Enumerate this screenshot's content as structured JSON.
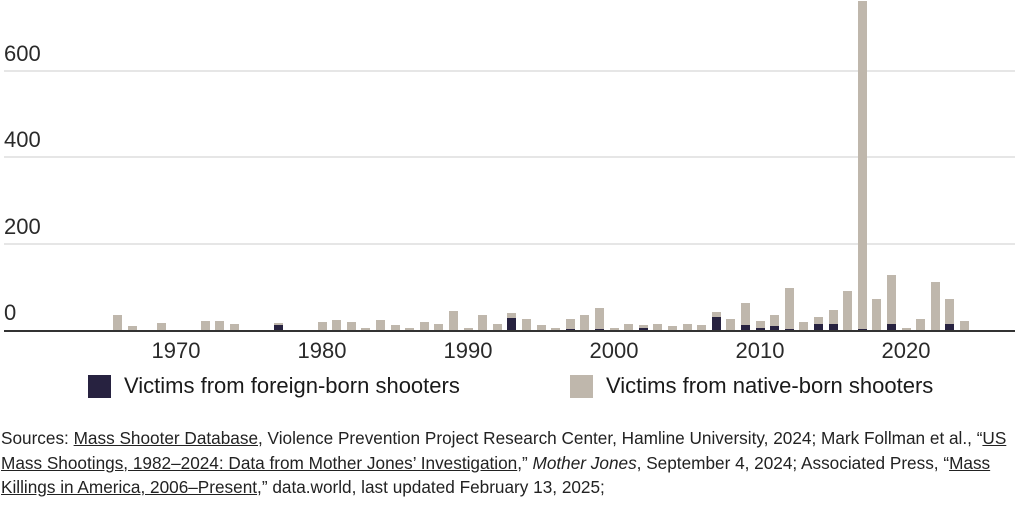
{
  "colors": {
    "foreign": "#272240",
    "native": "#bfb7ac",
    "grid": "#e6e6e6",
    "axis": "#333333"
  },
  "chart_data": {
    "type": "bar",
    "stacked": true,
    "title": "",
    "xlabel": "",
    "ylabel": "",
    "ylim": [
      0,
      760
    ],
    "yticks": [
      0,
      200,
      400,
      600
    ],
    "xticks": [
      1970,
      1980,
      1990,
      2000,
      2010,
      2020
    ],
    "grid": true,
    "legend_position": "bottom",
    "note": "2017 bar exceeds the visible plot area (clipped at top)",
    "categories": [
      1966,
      1967,
      1968,
      1969,
      1970,
      1971,
      1972,
      1973,
      1974,
      1975,
      1976,
      1977,
      1978,
      1979,
      1980,
      1981,
      1982,
      1983,
      1984,
      1985,
      1986,
      1987,
      1988,
      1989,
      1990,
      1991,
      1992,
      1993,
      1994,
      1995,
      1996,
      1997,
      1998,
      1999,
      2000,
      2001,
      2002,
      2003,
      2004,
      2005,
      2006,
      2007,
      2008,
      2009,
      2010,
      2011,
      2012,
      2013,
      2014,
      2015,
      2016,
      2017,
      2018,
      2019,
      2020,
      2021,
      2022,
      2023,
      2024
    ],
    "series": [
      {
        "name": "Victims from foreign-born shooters",
        "color": "#272240",
        "values": [
          0,
          0,
          0,
          0,
          0,
          0,
          0,
          0,
          0,
          0,
          0,
          12,
          0,
          0,
          0,
          0,
          0,
          0,
          0,
          0,
          0,
          0,
          0,
          0,
          0,
          0,
          0,
          28,
          0,
          0,
          0,
          3,
          0,
          3,
          0,
          0,
          5,
          0,
          0,
          0,
          0,
          30,
          0,
          12,
          5,
          9,
          3,
          0,
          14,
          14,
          0,
          3,
          0,
          14,
          0,
          0,
          0,
          14,
          0
        ]
      },
      {
        "name": "Victims from native-born shooters",
        "color": "#bfb7ac",
        "values": [
          35,
          9,
          0,
          16,
          0,
          0,
          21,
          21,
          14,
          0,
          0,
          4,
          0,
          0,
          19,
          24,
          19,
          5,
          24,
          11,
          5,
          19,
          14,
          44,
          5,
          35,
          14,
          12,
          26,
          11,
          5,
          23,
          35,
          48,
          5,
          14,
          7,
          14,
          10,
          14,
          11,
          12,
          26,
          51,
          16,
          26,
          95,
          19,
          16,
          33,
          91,
          757,
          72,
          114,
          5,
          26,
          112,
          58,
          21
        ]
      }
    ]
  },
  "axes": {
    "y_labels": [
      "0",
      "200",
      "400",
      "600"
    ],
    "x_labels": [
      "1970",
      "1980",
      "1990",
      "2000",
      "2010",
      "2020"
    ]
  },
  "legend": [
    {
      "key": "foreign",
      "label": "Victims from foreign-born shooters"
    },
    {
      "key": "native",
      "label": "Victims from native-born shooters"
    }
  ],
  "sources": {
    "prefix": "Sources: ",
    "link1": "Mass Shooter Database",
    "text1": ", Violence Prevention Project Research Center, Hamline University, 2024; Mark Follman et al., “",
    "link2": "US Mass Shootings, 1982–2024: Data from Mother Jones’ Investigation",
    "text2": ",” ",
    "italic1": "Mother Jones",
    "text3": ", September 4, 2024; Associated Press, “",
    "link3": "Mass Killings in America, 2006–Present",
    "text4": ",” data.world, last updated February 13, 2025;"
  }
}
